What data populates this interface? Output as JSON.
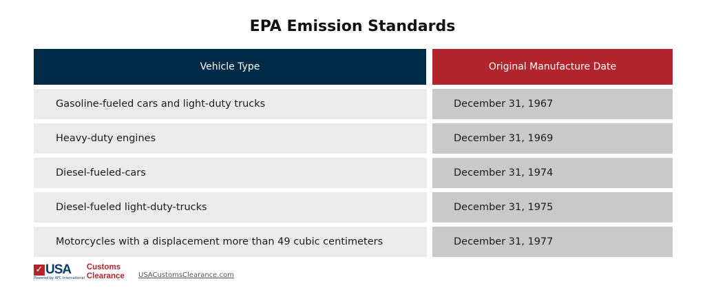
{
  "title": "EPA Emission Standards",
  "headers": [
    "Vehicle Type",
    "Original Manufacture Date"
  ],
  "rows": [
    {
      "vehicle": "Gasoline-fueled cars and light-duty trucks",
      "date": "December 31, 1967"
    },
    {
      "vehicle": "Heavy-duty engines",
      "date": "December 31, 1969"
    },
    {
      "vehicle": "Diesel-fueled-cars",
      "date": "December 31, 1974"
    },
    {
      "vehicle": "Diesel-fueled light-duty-trucks",
      "date": "December 31, 1975"
    },
    {
      "vehicle": "Motorcycles with a displacement more than 49 cubic centimeters",
      "date": "December 31, 1977"
    }
  ],
  "footer": {
    "logo_main": "USA",
    "logo_line1": "Customs",
    "logo_line2": "Clearance",
    "logo_powered": "Powered by AFC International",
    "url": "USACustomsClearance.com"
  },
  "colors": {
    "header_left": "#022b48",
    "header_right": "#b3252d"
  }
}
